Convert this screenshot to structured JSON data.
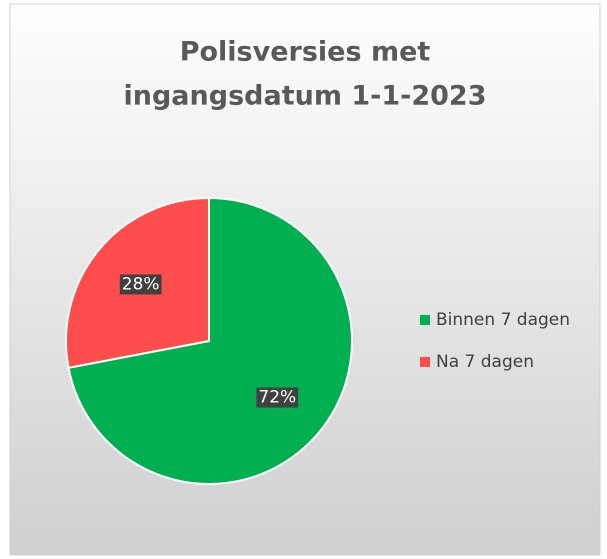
{
  "chart_data": {
    "type": "pie",
    "title": [
      "Polisversies met",
      "ingangsdatum 1-1-2023"
    ],
    "categories": [
      "Binnen 7 dagen",
      "Na 7 dagen"
    ],
    "values": [
      72,
      28
    ],
    "value_labels": [
      "72%",
      "28%"
    ],
    "colors": [
      "#00b050",
      "#ff4d4d"
    ],
    "legend": "right"
  }
}
